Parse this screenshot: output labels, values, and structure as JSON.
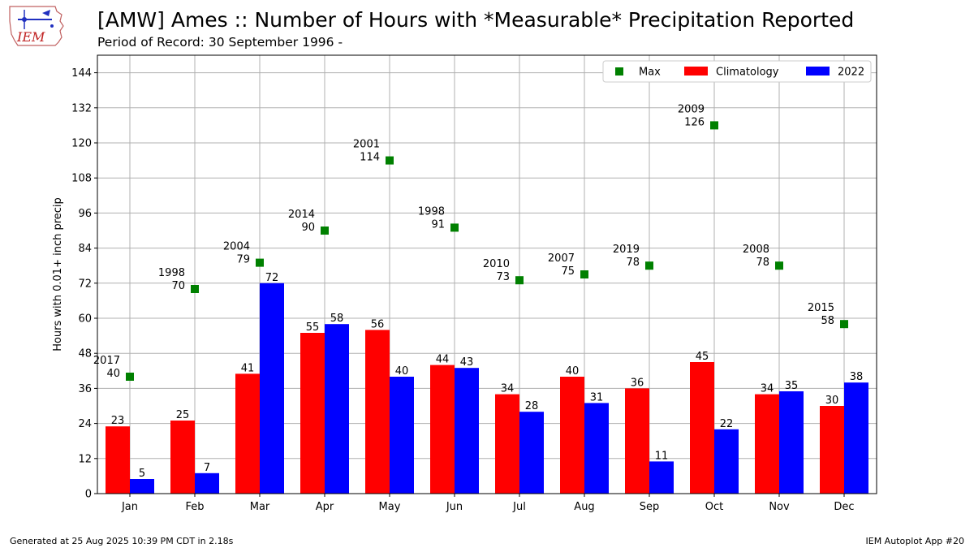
{
  "header": {
    "logo_text": "IEM",
    "title": "[AMW] Ames :: Number of Hours with *Measurable* Precipitation Reported",
    "subtitle": "Period of Record: 30 September 1996 -"
  },
  "footer": {
    "generated": "Generated at 25 Aug 2025 10:39 PM CDT in 2.18s",
    "app": "IEM Autoplot App #20"
  },
  "colors": {
    "max": "#008000",
    "climatology": "#ff0000",
    "current": "#0000ff"
  },
  "chart_data": {
    "type": "bar",
    "ylabel": "Hours with 0.01+ inch precip",
    "xlabel": "",
    "ylim": [
      0,
      150
    ],
    "yticks": [
      0,
      12,
      24,
      36,
      48,
      60,
      72,
      84,
      96,
      108,
      120,
      132,
      144
    ],
    "grid": true,
    "legend_placement": "top-right",
    "categories": [
      "Jan",
      "Feb",
      "Mar",
      "Apr",
      "May",
      "Jun",
      "Jul",
      "Aug",
      "Sep",
      "Oct",
      "Nov",
      "Dec"
    ],
    "series": [
      {
        "name": "Climatology",
        "kind": "bar",
        "values": [
          23,
          25,
          41,
          55,
          56,
          44,
          34,
          40,
          36,
          45,
          34,
          30
        ]
      },
      {
        "name": "2022",
        "kind": "bar",
        "values": [
          5,
          7,
          72,
          58,
          40,
          43,
          28,
          31,
          11,
          22,
          35,
          38
        ]
      },
      {
        "name": "Max",
        "kind": "marker",
        "values": [
          40,
          70,
          79,
          90,
          114,
          91,
          73,
          75,
          78,
          126,
          78,
          58
        ],
        "years": [
          "2017",
          "1998",
          "2004",
          "2014",
          "2001",
          "1998",
          "2010",
          "2007",
          "2019",
          "2009",
          "2008",
          "2015"
        ]
      }
    ]
  }
}
